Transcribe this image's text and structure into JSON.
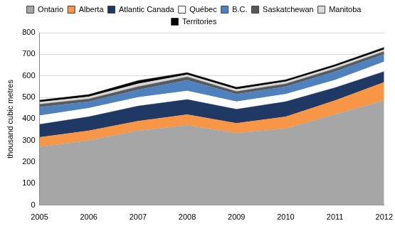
{
  "chart_data": {
    "type": "area",
    "y_label": "thousand cubic metres",
    "categories": [
      "2005",
      "2006",
      "2007",
      "2008",
      "2009",
      "2010",
      "2011",
      "2012"
    ],
    "series": [
      {
        "name": "Ontario",
        "color": "#a6a6a6",
        "values": [
          270,
          300,
          345,
          370,
          335,
          355,
          420,
          485
        ]
      },
      {
        "name": "Alberta",
        "color": "#f79646",
        "values": [
          45,
          45,
          45,
          50,
          45,
          55,
          65,
          85
        ]
      },
      {
        "name": "Atlantic Canada",
        "color": "#1f3864",
        "values": [
          60,
          65,
          70,
          70,
          65,
          70,
          60,
          50
        ]
      },
      {
        "name": "Québec",
        "color": "#ffffff",
        "values": [
          40,
          40,
          40,
          40,
          35,
          35,
          35,
          45
        ]
      },
      {
        "name": "B.C.",
        "color": "#4f81bd",
        "values": [
          40,
          30,
          35,
          50,
          35,
          35,
          40,
          35
        ]
      },
      {
        "name": "Saskatchewan",
        "color": "#595959",
        "values": [
          13,
          13,
          15,
          15,
          12,
          13,
          13,
          13
        ]
      },
      {
        "name": "Manitoba",
        "color": "#d9d9d9",
        "values": [
          10,
          10,
          13,
          10,
          10,
          10,
          10,
          9
        ]
      },
      {
        "name": "Territories",
        "color": "#000000",
        "values": [
          9,
          10,
          15,
          10,
          10,
          9,
          9,
          10
        ]
      }
    ],
    "ylim": [
      0,
      800
    ],
    "yticks": [
      0,
      100,
      200,
      300,
      400,
      500,
      600,
      700,
      800
    ],
    "stacked": true,
    "grid": true,
    "legend": "top"
  }
}
